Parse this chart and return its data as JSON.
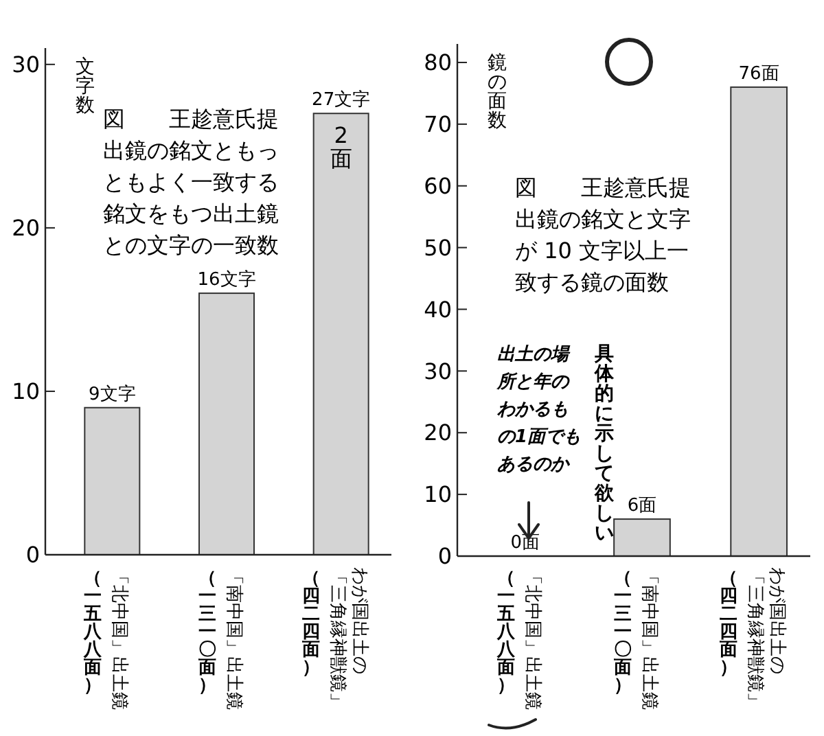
{
  "chart_data": [
    {
      "type": "bar",
      "title": "図　　王趁意氏提出鏡の銘文ともっともよく一致する銘文をもつ出土鏡との文字の一致数",
      "ylabel": "文字数",
      "categories": [
        "「北中国」出土鏡",
        "「南中国」出土鏡",
        "わが国出土の「三角縁神獣鏡」"
      ],
      "values": [
        9,
        16,
        27
      ],
      "value_labels": [
        "9文字",
        "16文字",
        "27文字"
      ],
      "color": "#d4d4d4",
      "ylim": [
        0,
        31
      ],
      "yticks": [
        0,
        10,
        20,
        30
      ],
      "grid": false,
      "annotations": [
        "（一五八八面）",
        "（一三一〇面）",
        "（四二四面）",
        "2面"
      ]
    },
    {
      "type": "bar",
      "title": "図　　王趁意氏提出鏡の銘文と文字が 10 文字以上一致する鏡の面数",
      "ylabel": "鏡の面数",
      "categories": [
        "「北中国」出土鏡",
        "「南中国」出土鏡",
        "わが国出土の「三角縁神獣鏡」"
      ],
      "values": [
        0,
        6,
        76
      ],
      "value_labels": [
        "0面",
        "6面",
        "76面"
      ],
      "color": "#d4d4d4",
      "ylim": [
        0,
        83
      ],
      "yticks": [
        0,
        10,
        20,
        30,
        40,
        50,
        60,
        70,
        80
      ],
      "grid": false,
      "annotations": [
        "（一五八八面）",
        "（一三一〇面）",
        "（四二四面）",
        "出土の場所と年のわかるもの1面でもあるのか",
        "具体的に示して欲しい"
      ]
    }
  ]
}
